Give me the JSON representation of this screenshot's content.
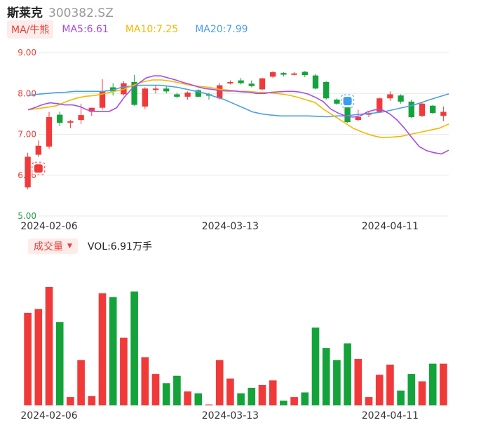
{
  "header": {
    "name": "斯莱克",
    "code": "300382.SZ"
  },
  "ma": {
    "toggle_label": "MA/牛熊",
    "ma5_label": "MA5:6.61",
    "ma10_label": "MA10:7.25",
    "ma20_label": "MA20:7.99",
    "colors": {
      "ma5": "#a94be8",
      "ma10": "#f5b800",
      "ma20": "#4a9ee8"
    }
  },
  "volume": {
    "toggle_label": "成交量",
    "vol_text": "VOL:6.91万手"
  },
  "colors": {
    "up": "#f03a3a",
    "down": "#14a33a",
    "grid": "#e8e8e8"
  },
  "chart_data": [
    {
      "type": "candlestick",
      "ylim": [
        5.0,
        9.0
      ],
      "y_ticks": [
        "9.00",
        "8.00",
        "7.00",
        "6.00",
        "5.00"
      ],
      "x_tick_labels": [
        "2024-02-06",
        "2024-03-13",
        "2024-04-11"
      ],
      "x_tick_indices": [
        2,
        19,
        34
      ],
      "candles": [
        {
          "o": 5.7,
          "h": 6.55,
          "l": 5.65,
          "c": 6.45
        },
        {
          "o": 6.5,
          "h": 6.85,
          "l": 6.45,
          "c": 6.72
        },
        {
          "o": 6.7,
          "h": 7.55,
          "l": 6.65,
          "c": 7.42
        },
        {
          "o": 7.48,
          "h": 7.55,
          "l": 7.2,
          "c": 7.28
        },
        {
          "o": 7.29,
          "h": 7.35,
          "l": 7.15,
          "c": 7.32
        },
        {
          "o": 7.35,
          "h": 7.75,
          "l": 7.25,
          "c": 7.47
        },
        {
          "o": 7.55,
          "h": 7.65,
          "l": 7.45,
          "c": 7.65
        },
        {
          "o": 7.65,
          "h": 8.35,
          "l": 7.6,
          "c": 8.05
        },
        {
          "o": 8.15,
          "h": 8.25,
          "l": 7.95,
          "c": 8.05
        },
        {
          "o": 7.98,
          "h": 8.3,
          "l": 7.95,
          "c": 8.25
        },
        {
          "o": 8.28,
          "h": 8.45,
          "l": 7.7,
          "c": 7.72
        },
        {
          "o": 7.68,
          "h": 8.15,
          "l": 7.62,
          "c": 8.12
        },
        {
          "o": 8.1,
          "h": 8.2,
          "l": 8.0,
          "c": 8.12
        },
        {
          "o": 8.12,
          "h": 8.18,
          "l": 8.0,
          "c": 8.05
        },
        {
          "o": 7.98,
          "h": 8.02,
          "l": 7.88,
          "c": 7.92
        },
        {
          "o": 7.92,
          "h": 8.05,
          "l": 7.85,
          "c": 8.02
        },
        {
          "o": 8.08,
          "h": 8.1,
          "l": 7.9,
          "c": 7.92
        },
        {
          "o": 7.98,
          "h": 8.02,
          "l": 7.85,
          "c": 7.96
        },
        {
          "o": 7.88,
          "h": 8.25,
          "l": 7.85,
          "c": 8.2
        },
        {
          "o": 8.28,
          "h": 8.32,
          "l": 8.22,
          "c": 8.28
        },
        {
          "o": 8.32,
          "h": 8.38,
          "l": 8.22,
          "c": 8.25
        },
        {
          "o": 8.24,
          "h": 8.32,
          "l": 8.15,
          "c": 8.18
        },
        {
          "o": 8.1,
          "h": 8.38,
          "l": 8.08,
          "c": 8.37
        },
        {
          "o": 8.41,
          "h": 8.55,
          "l": 8.38,
          "c": 8.52
        },
        {
          "o": 8.5,
          "h": 8.52,
          "l": 8.42,
          "c": 8.46
        },
        {
          "o": 8.47,
          "h": 8.52,
          "l": 8.44,
          "c": 8.49
        },
        {
          "o": 8.53,
          "h": 8.55,
          "l": 8.4,
          "c": 8.45
        },
        {
          "o": 8.44,
          "h": 8.48,
          "l": 8.1,
          "c": 8.12
        },
        {
          "o": 8.28,
          "h": 8.3,
          "l": 7.85,
          "c": 7.88
        },
        {
          "o": 7.85,
          "h": 7.88,
          "l": 7.72,
          "c": 7.75
        },
        {
          "o": 7.72,
          "h": 7.85,
          "l": 7.28,
          "c": 7.3
        },
        {
          "o": 7.35,
          "h": 7.6,
          "l": 7.32,
          "c": 7.42
        },
        {
          "o": 7.48,
          "h": 7.55,
          "l": 7.42,
          "c": 7.52
        },
        {
          "o": 7.55,
          "h": 7.9,
          "l": 7.52,
          "c": 7.88
        },
        {
          "o": 7.88,
          "h": 8.05,
          "l": 7.82,
          "c": 7.98
        },
        {
          "o": 7.95,
          "h": 7.98,
          "l": 7.75,
          "c": 7.8
        },
        {
          "o": 7.8,
          "h": 7.85,
          "l": 7.4,
          "c": 7.42
        },
        {
          "o": 7.45,
          "h": 7.78,
          "l": 7.42,
          "c": 7.75
        },
        {
          "o": 7.7,
          "h": 7.72,
          "l": 7.5,
          "c": 7.52
        },
        {
          "o": 7.45,
          "h": 7.68,
          "l": 7.32,
          "c": 7.55
        }
      ],
      "ma5": [
        7.6,
        7.66,
        7.73,
        7.77,
        7.75,
        7.72,
        7.72,
        7.68,
        7.6,
        7.56,
        7.56,
        7.56,
        7.65,
        7.9,
        8.1,
        8.25,
        8.38,
        8.43,
        8.43,
        8.38,
        8.33,
        8.27,
        8.22,
        8.16,
        8.12,
        8.1,
        8.07,
        8.06,
        8.06,
        8.04,
        8.03,
        8.0,
        8.0,
        8.03,
        8.04,
        8.05,
        8.05,
        8.03,
        7.98,
        7.9,
        7.8,
        7.62,
        7.52,
        7.45,
        7.42,
        7.45,
        7.55,
        7.6,
        7.6,
        7.5,
        7.35,
        7.15,
        6.92,
        6.7,
        6.6,
        6.55,
        6.52,
        6.61
      ],
      "ma10": [
        7.6,
        7.63,
        7.66,
        7.7,
        7.8,
        7.88,
        7.93,
        7.95,
        8.0,
        8.05,
        8.1,
        8.2,
        8.28,
        8.33,
        8.33,
        8.3,
        8.25,
        8.2,
        8.17,
        8.15,
        8.1,
        8.08,
        8.05,
        8.05,
        8.03,
        8.02,
        8.0,
        7.97,
        7.92,
        7.85,
        7.78,
        7.6,
        7.45,
        7.3,
        7.15,
        7.05,
        6.97,
        6.92,
        6.93,
        6.95,
        7.0,
        7.05,
        7.1,
        7.15,
        7.25
      ],
      "ma20": [
        7.95,
        7.98,
        8.0,
        8.02,
        8.03,
        8.05,
        8.05,
        8.05,
        8.05,
        8.08,
        8.15,
        8.18,
        8.2,
        8.2,
        8.2,
        8.18,
        8.15,
        8.1,
        8.05,
        8.0,
        7.92,
        7.85,
        7.75,
        7.65,
        7.55,
        7.5,
        7.47,
        7.45,
        7.45,
        7.45,
        7.45,
        7.44,
        7.43,
        7.45,
        7.45,
        7.48,
        7.5,
        7.52,
        7.55,
        7.6,
        7.65,
        7.7,
        7.77,
        7.85,
        7.92,
        7.99
      ]
    },
    {
      "type": "bar",
      "title": "成交量",
      "values": [
        100,
        104,
        128,
        90,
        9,
        49,
        10,
        121,
        117,
        73,
        123,
        52,
        34,
        24,
        32,
        15,
        13,
        1,
        49,
        29,
        13,
        19,
        22,
        27,
        5,
        9,
        14,
        84,
        62,
        49,
        67,
        50,
        9,
        33,
        44,
        16,
        34,
        26,
        45,
        45
      ],
      "up": [
        true,
        true,
        true,
        false,
        true,
        true,
        true,
        true,
        false,
        true,
        false,
        true,
        true,
        false,
        false,
        true,
        false,
        true,
        true,
        true,
        false,
        false,
        true,
        true,
        false,
        true,
        false,
        false,
        false,
        false,
        false,
        true,
        true,
        true,
        true,
        false,
        false,
        true,
        false,
        true
      ]
    }
  ]
}
